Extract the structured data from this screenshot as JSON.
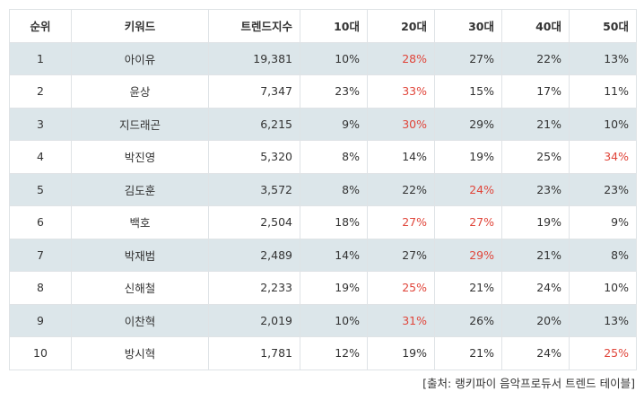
{
  "table": {
    "headers": [
      "순위",
      "키워드",
      "트렌드지수",
      "10대",
      "20대",
      "30대",
      "40대",
      "50대"
    ],
    "rows": [
      {
        "rank": "1",
        "keyword": "아이유",
        "index": "19,381",
        "ages": [
          "10%",
          "28%",
          "27%",
          "22%",
          "13%"
        ],
        "highlight": [
          1
        ]
      },
      {
        "rank": "2",
        "keyword": "윤상",
        "index": "7,347",
        "ages": [
          "23%",
          "33%",
          "15%",
          "17%",
          "11%"
        ],
        "highlight": [
          1
        ]
      },
      {
        "rank": "3",
        "keyword": "지드래곤",
        "index": "6,215",
        "ages": [
          "9%",
          "30%",
          "29%",
          "21%",
          "10%"
        ],
        "highlight": [
          1
        ]
      },
      {
        "rank": "4",
        "keyword": "박진영",
        "index": "5,320",
        "ages": [
          "8%",
          "14%",
          "19%",
          "25%",
          "34%"
        ],
        "highlight": [
          4
        ]
      },
      {
        "rank": "5",
        "keyword": "김도훈",
        "index": "3,572",
        "ages": [
          "8%",
          "22%",
          "24%",
          "23%",
          "23%"
        ],
        "highlight": [
          2
        ]
      },
      {
        "rank": "6",
        "keyword": "백호",
        "index": "2,504",
        "ages": [
          "18%",
          "27%",
          "27%",
          "19%",
          "9%"
        ],
        "highlight": [
          1,
          2
        ]
      },
      {
        "rank": "7",
        "keyword": "박재범",
        "index": "2,489",
        "ages": [
          "14%",
          "27%",
          "29%",
          "21%",
          "8%"
        ],
        "highlight": [
          2
        ]
      },
      {
        "rank": "8",
        "keyword": "신해철",
        "index": "2,233",
        "ages": [
          "19%",
          "25%",
          "21%",
          "24%",
          "10%"
        ],
        "highlight": [
          1
        ]
      },
      {
        "rank": "9",
        "keyword": "이찬혁",
        "index": "2,019",
        "ages": [
          "10%",
          "31%",
          "26%",
          "20%",
          "13%"
        ],
        "highlight": [
          1
        ]
      },
      {
        "rank": "10",
        "keyword": "방시혁",
        "index": "1,781",
        "ages": [
          "12%",
          "19%",
          "21%",
          "24%",
          "25%"
        ],
        "highlight": [
          4
        ]
      }
    ]
  },
  "source": "[출처: 랭키파이 음악프로듀서 트렌드 테이블]",
  "colors": {
    "highlight": "#e0453a",
    "stripe": "#dce6ea",
    "border": "#dfe3e6"
  }
}
